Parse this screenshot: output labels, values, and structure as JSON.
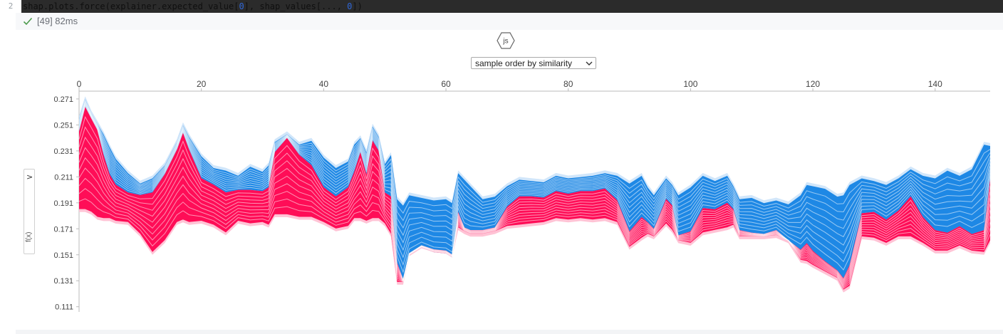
{
  "cell": {
    "line_number": "2",
    "code_parts": [
      "shap.plots.force(explainer.expected_value[",
      "0",
      "], shap_values[..., ",
      "0",
      "])"
    ],
    "exec_label": "[49] 82ms"
  },
  "plot": {
    "badge": "js",
    "order_select": "sample order by similarity",
    "side_toggle_icon": ">",
    "ylabel": "f(x)"
  },
  "colors": {
    "positive": "#ff0d57",
    "positive_light": "#ffc3d5",
    "negative": "#1e88e5",
    "negative_light": "#d1e6fa"
  },
  "chart_data": {
    "type": "area",
    "title": "",
    "xlabel": "",
    "ylabel": "f(x)",
    "xlim": [
      0,
      149
    ],
    "ylim": [
      0.107,
      0.277
    ],
    "x_ticks": [
      0,
      20,
      40,
      60,
      80,
      100,
      120,
      140
    ],
    "y_ticks": [
      0.271,
      0.251,
      0.231,
      0.211,
      0.191,
      0.171,
      0.151,
      0.131,
      0.111
    ],
    "series": [
      {
        "role": "output-top",
        "points": [
          [
            0,
            0.258
          ],
          [
            1,
            0.273
          ],
          [
            2,
            0.262
          ],
          [
            3,
            0.254
          ],
          [
            4,
            0.246
          ],
          [
            5,
            0.236
          ],
          [
            6,
            0.227
          ],
          [
            8,
            0.216
          ],
          [
            10,
            0.208
          ],
          [
            12,
            0.212
          ],
          [
            14,
            0.222
          ],
          [
            16,
            0.24
          ],
          [
            17,
            0.253
          ],
          [
            18,
            0.244
          ],
          [
            20,
            0.229
          ],
          [
            22,
            0.22
          ],
          [
            24,
            0.218
          ],
          [
            26,
            0.214
          ],
          [
            28,
            0.221
          ],
          [
            30,
            0.217
          ],
          [
            31,
            0.222
          ],
          [
            32,
            0.24
          ],
          [
            34,
            0.246
          ],
          [
            36,
            0.238
          ],
          [
            38,
            0.241
          ],
          [
            40,
            0.228
          ],
          [
            42,
            0.22
          ],
          [
            44,
            0.225
          ],
          [
            45,
            0.238
          ],
          [
            46,
            0.243
          ],
          [
            47,
            0.232
          ],
          [
            48,
            0.252
          ],
          [
            49,
            0.244
          ],
          [
            50,
            0.223
          ],
          [
            51,
            0.23
          ],
          [
            52,
            0.196
          ],
          [
            53,
            0.191
          ],
          [
            54,
            0.199
          ],
          [
            56,
            0.197
          ],
          [
            58,
            0.195
          ],
          [
            60,
            0.196
          ],
          [
            61,
            0.193
          ],
          [
            62,
            0.216
          ],
          [
            63,
            0.211
          ],
          [
            64,
            0.206
          ],
          [
            66,
            0.196
          ],
          [
            68,
            0.198
          ],
          [
            70,
            0.206
          ],
          [
            72,
            0.211
          ],
          [
            74,
            0.21
          ],
          [
            76,
            0.209
          ],
          [
            78,
            0.214
          ],
          [
            80,
            0.212
          ],
          [
            82,
            0.213
          ],
          [
            84,
            0.214
          ],
          [
            86,
            0.216
          ],
          [
            88,
            0.214
          ],
          [
            90,
            0.208
          ],
          [
            92,
            0.214
          ],
          [
            93,
            0.205
          ],
          [
            94,
            0.199
          ],
          [
            96,
            0.212
          ],
          [
            97,
            0.207
          ],
          [
            98,
            0.199
          ],
          [
            100,
            0.205
          ],
          [
            102,
            0.214
          ],
          [
            104,
            0.21
          ],
          [
            106,
            0.214
          ],
          [
            107,
            0.206
          ],
          [
            108,
            0.196
          ],
          [
            110,
            0.197
          ],
          [
            112,
            0.193
          ],
          [
            114,
            0.195
          ],
          [
            116,
            0.192
          ],
          [
            118,
            0.199
          ],
          [
            119,
            0.207
          ],
          [
            120,
            0.206
          ],
          [
            122,
            0.204
          ],
          [
            124,
            0.198
          ],
          [
            125,
            0.199
          ],
          [
            126,
            0.207
          ],
          [
            128,
            0.212
          ],
          [
            130,
            0.21
          ],
          [
            132,
            0.207
          ],
          [
            134,
            0.212
          ],
          [
            136,
            0.219
          ],
          [
            138,
            0.214
          ],
          [
            140,
            0.212
          ],
          [
            142,
            0.218
          ],
          [
            144,
            0.214
          ],
          [
            146,
            0.219
          ],
          [
            148,
            0.238
          ],
          [
            149,
            0.237
          ]
        ]
      },
      {
        "role": "red-blue-boundary",
        "points": [
          [
            0,
            0.246
          ],
          [
            1,
            0.265
          ],
          [
            2,
            0.256
          ],
          [
            3,
            0.247
          ],
          [
            4,
            0.228
          ],
          [
            5,
            0.213
          ],
          [
            6,
            0.205
          ],
          [
            8,
            0.199
          ],
          [
            10,
            0.197
          ],
          [
            12,
            0.199
          ],
          [
            14,
            0.213
          ],
          [
            16,
            0.232
          ],
          [
            17,
            0.245
          ],
          [
            18,
            0.232
          ],
          [
            20,
            0.21
          ],
          [
            22,
            0.205
          ],
          [
            24,
            0.199
          ],
          [
            26,
            0.201
          ],
          [
            28,
            0.201
          ],
          [
            30,
            0.2
          ],
          [
            31,
            0.203
          ],
          [
            32,
            0.23
          ],
          [
            34,
            0.241
          ],
          [
            36,
            0.228
          ],
          [
            38,
            0.22
          ],
          [
            40,
            0.203
          ],
          [
            42,
            0.196
          ],
          [
            44,
            0.203
          ],
          [
            45,
            0.215
          ],
          [
            46,
            0.23
          ],
          [
            47,
            0.213
          ],
          [
            48,
            0.239
          ],
          [
            49,
            0.231
          ],
          [
            50,
            0.199
          ],
          [
            51,
            0.196
          ],
          [
            52,
            0.145
          ],
          [
            53,
            0.132
          ],
          [
            54,
            0.151
          ],
          [
            56,
            0.157
          ],
          [
            58,
            0.153
          ],
          [
            60,
            0.152
          ],
          [
            61,
            0.149
          ],
          [
            62,
            0.184
          ],
          [
            63,
            0.172
          ],
          [
            64,
            0.17
          ],
          [
            66,
            0.17
          ],
          [
            68,
            0.172
          ],
          [
            70,
            0.188
          ],
          [
            72,
            0.196
          ],
          [
            74,
            0.196
          ],
          [
            76,
            0.195
          ],
          [
            78,
            0.2
          ],
          [
            80,
            0.198
          ],
          [
            82,
            0.2
          ],
          [
            84,
            0.2
          ],
          [
            86,
            0.202
          ],
          [
            88,
            0.193
          ],
          [
            90,
            0.169
          ],
          [
            92,
            0.18
          ],
          [
            93,
            0.176
          ],
          [
            94,
            0.171
          ],
          [
            96,
            0.194
          ],
          [
            97,
            0.189
          ],
          [
            98,
            0.166
          ],
          [
            100,
            0.169
          ],
          [
            102,
            0.187
          ],
          [
            104,
            0.186
          ],
          [
            106,
            0.191
          ],
          [
            107,
            0.186
          ],
          [
            108,
            0.17
          ],
          [
            110,
            0.168
          ],
          [
            112,
            0.167
          ],
          [
            114,
            0.17
          ],
          [
            116,
            0.162
          ],
          [
            118,
            0.155
          ],
          [
            119,
            0.16
          ],
          [
            120,
            0.154
          ],
          [
            122,
            0.146
          ],
          [
            124,
            0.139
          ],
          [
            125,
            0.133
          ],
          [
            126,
            0.143
          ],
          [
            128,
            0.183
          ],
          [
            130,
            0.184
          ],
          [
            132,
            0.178
          ],
          [
            134,
            0.185
          ],
          [
            136,
            0.196
          ],
          [
            138,
            0.18
          ],
          [
            140,
            0.17
          ],
          [
            142,
            0.168
          ],
          [
            144,
            0.173
          ],
          [
            146,
            0.167
          ],
          [
            148,
            0.17
          ],
          [
            149,
            0.209
          ]
        ]
      },
      {
        "role": "base-bottom",
        "points": [
          [
            0,
            0.184
          ],
          [
            1,
            0.184
          ],
          [
            2,
            0.182
          ],
          [
            3,
            0.178
          ],
          [
            4,
            0.177
          ],
          [
            5,
            0.177
          ],
          [
            6,
            0.175
          ],
          [
            8,
            0.174
          ],
          [
            10,
            0.165
          ],
          [
            12,
            0.151
          ],
          [
            14,
            0.16
          ],
          [
            16,
            0.174
          ],
          [
            17,
            0.176
          ],
          [
            18,
            0.174
          ],
          [
            20,
            0.175
          ],
          [
            22,
            0.172
          ],
          [
            24,
            0.166
          ],
          [
            26,
            0.175
          ],
          [
            28,
            0.173
          ],
          [
            30,
            0.174
          ],
          [
            31,
            0.172
          ],
          [
            32,
            0.18
          ],
          [
            34,
            0.18
          ],
          [
            36,
            0.178
          ],
          [
            38,
            0.178
          ],
          [
            40,
            0.174
          ],
          [
            42,
            0.169
          ],
          [
            44,
            0.171
          ],
          [
            45,
            0.177
          ],
          [
            46,
            0.177
          ],
          [
            47,
            0.175
          ],
          [
            48,
            0.177
          ],
          [
            49,
            0.177
          ],
          [
            50,
            0.173
          ],
          [
            51,
            0.165
          ],
          [
            52,
            0.128
          ],
          [
            53,
            0.128
          ],
          [
            54,
            0.15
          ],
          [
            56,
            0.156
          ],
          [
            58,
            0.153
          ],
          [
            60,
            0.152
          ],
          [
            61,
            0.149
          ],
          [
            62,
            0.17
          ],
          [
            63,
            0.167
          ],
          [
            64,
            0.165
          ],
          [
            66,
            0.165
          ],
          [
            68,
            0.167
          ],
          [
            70,
            0.171
          ],
          [
            72,
            0.172
          ],
          [
            74,
            0.173
          ],
          [
            76,
            0.174
          ],
          [
            78,
            0.177
          ],
          [
            80,
            0.176
          ],
          [
            82,
            0.177
          ],
          [
            84,
            0.176
          ],
          [
            86,
            0.177
          ],
          [
            88,
            0.174
          ],
          [
            90,
            0.155
          ],
          [
            92,
            0.162
          ],
          [
            93,
            0.165
          ],
          [
            94,
            0.163
          ],
          [
            96,
            0.173
          ],
          [
            97,
            0.168
          ],
          [
            98,
            0.16
          ],
          [
            100,
            0.158
          ],
          [
            102,
            0.166
          ],
          [
            104,
            0.168
          ],
          [
            106,
            0.17
          ],
          [
            107,
            0.172
          ],
          [
            108,
            0.163
          ],
          [
            110,
            0.163
          ],
          [
            112,
            0.163
          ],
          [
            114,
            0.164
          ],
          [
            116,
            0.16
          ],
          [
            118,
            0.145
          ],
          [
            119,
            0.144
          ],
          [
            120,
            0.141
          ],
          [
            122,
            0.136
          ],
          [
            124,
            0.131
          ],
          [
            125,
            0.122
          ],
          [
            126,
            0.125
          ],
          [
            128,
            0.163
          ],
          [
            130,
            0.162
          ],
          [
            132,
            0.158
          ],
          [
            134,
            0.163
          ],
          [
            136,
            0.163
          ],
          [
            138,
            0.158
          ],
          [
            140,
            0.152
          ],
          [
            142,
            0.152
          ],
          [
            144,
            0.156
          ],
          [
            146,
            0.152
          ],
          [
            148,
            0.151
          ],
          [
            149,
            0.16
          ]
        ]
      }
    ]
  }
}
